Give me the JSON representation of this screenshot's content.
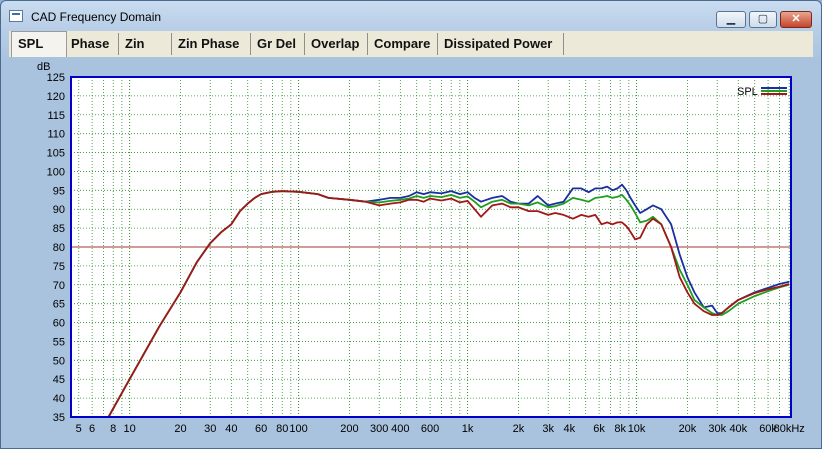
{
  "window": {
    "title": "CAD Frequency Domain",
    "min_label": "▁",
    "max_label": "▢",
    "close_label": "✕"
  },
  "tabs": [
    {
      "label": "SPL",
      "active": true
    },
    {
      "label": "Phase",
      "active": false
    },
    {
      "label": "Zin",
      "active": false
    },
    {
      "label": "Zin Phase",
      "active": false
    },
    {
      "label": "Gr Del",
      "active": false
    },
    {
      "label": "Overlap",
      "active": false
    },
    {
      "label": "Compare",
      "active": false
    },
    {
      "label": "Dissipated Power",
      "active": false
    }
  ],
  "colors": {
    "grid_major": "#2c8a2c",
    "grid_minor": "#2c8a2c",
    "axis": "#0000c8",
    "ref_line": "#a33",
    "blue": "#1a2fa0",
    "green": "#1f9e1f",
    "red": "#a01818"
  },
  "chart_data": {
    "type": "line",
    "title": "",
    "ylabel": "dB",
    "xlabel": "",
    "x_scale": "log",
    "xlim": [
      4.5,
      82000
    ],
    "ylim": [
      35,
      125
    ],
    "grid": true,
    "legend_label": "SPL",
    "legend_position": "top-right",
    "y_ticks": [
      35,
      40,
      45,
      50,
      55,
      60,
      65,
      70,
      75,
      80,
      85,
      90,
      95,
      100,
      105,
      110,
      115,
      120,
      125
    ],
    "x_ticks": [
      {
        "v": 5,
        "label": "5"
      },
      {
        "v": 6,
        "label": "6"
      },
      {
        "v": 8,
        "label": "8"
      },
      {
        "v": 10,
        "label": "10"
      },
      {
        "v": 20,
        "label": "20"
      },
      {
        "v": 30,
        "label": "30"
      },
      {
        "v": 40,
        "label": "40"
      },
      {
        "v": 60,
        "label": "60"
      },
      {
        "v": 80,
        "label": "80"
      },
      {
        "v": 100,
        "label": "100"
      },
      {
        "v": 200,
        "label": "200"
      },
      {
        "v": 300,
        "label": "300"
      },
      {
        "v": 400,
        "label": "400"
      },
      {
        "v": 600,
        "label": "600"
      },
      {
        "v": 1000,
        "label": "1k"
      },
      {
        "v": 2000,
        "label": "2k"
      },
      {
        "v": 3000,
        "label": "3k"
      },
      {
        "v": 4000,
        "label": "4k"
      },
      {
        "v": 6000,
        "label": "6k"
      },
      {
        "v": 8000,
        "label": "8k"
      },
      {
        "v": 10000,
        "label": "10k"
      },
      {
        "v": 20000,
        "label": "20k"
      },
      {
        "v": 30000,
        "label": "30k"
      },
      {
        "v": 40000,
        "label": "40k"
      },
      {
        "v": 60000,
        "label": "60k"
      },
      {
        "v": 80000,
        "label": "80kHz"
      }
    ],
    "reference_line": 80,
    "series": [
      {
        "color": "blue",
        "points": [
          [
            7.5,
            35
          ],
          [
            10,
            45
          ],
          [
            15,
            59
          ],
          [
            20,
            68
          ],
          [
            25,
            76
          ],
          [
            30,
            81
          ],
          [
            35,
            84
          ],
          [
            40,
            86
          ],
          [
            45,
            89.5
          ],
          [
            50,
            91.5
          ],
          [
            55,
            93
          ],
          [
            60,
            94
          ],
          [
            70,
            94.6
          ],
          [
            80,
            94.8
          ],
          [
            100,
            94.6
          ],
          [
            130,
            94
          ],
          [
            150,
            93
          ],
          [
            200,
            92.5
          ],
          [
            250,
            92
          ],
          [
            300,
            92.5
          ],
          [
            350,
            93
          ],
          [
            400,
            93
          ],
          [
            450,
            93.5
          ],
          [
            500,
            94.5
          ],
          [
            550,
            94
          ],
          [
            600,
            94.5
          ],
          [
            700,
            94.2
          ],
          [
            800,
            94.8
          ],
          [
            900,
            94
          ],
          [
            1000,
            94.5
          ],
          [
            1100,
            93
          ],
          [
            1200,
            92
          ],
          [
            1400,
            93
          ],
          [
            1600,
            93.5
          ],
          [
            1800,
            92
          ],
          [
            2000,
            91.5
          ],
          [
            2300,
            91.5
          ],
          [
            2600,
            93.5
          ],
          [
            3000,
            91
          ],
          [
            3300,
            91.5
          ],
          [
            3700,
            92
          ],
          [
            4200,
            95.5
          ],
          [
            4700,
            95.5
          ],
          [
            5200,
            94.5
          ],
          [
            5700,
            95.5
          ],
          [
            6200,
            95.5
          ],
          [
            6700,
            96
          ],
          [
            7200,
            95
          ],
          [
            7700,
            95.5
          ],
          [
            8200,
            96.5
          ],
          [
            8700,
            95
          ],
          [
            9200,
            93
          ],
          [
            9800,
            91
          ],
          [
            10500,
            89
          ],
          [
            11500,
            90
          ],
          [
            12500,
            91
          ],
          [
            14000,
            90
          ],
          [
            16000,
            86
          ],
          [
            18000,
            78
          ],
          [
            20000,
            72
          ],
          [
            22000,
            68
          ],
          [
            25000,
            64
          ],
          [
            28000,
            64.5
          ],
          [
            30000,
            62.5
          ],
          [
            32000,
            62.5
          ],
          [
            35000,
            64
          ],
          [
            40000,
            66
          ],
          [
            50000,
            68
          ],
          [
            60000,
            69.2
          ],
          [
            70000,
            70.2
          ],
          [
            80000,
            70.8
          ]
        ]
      },
      {
        "color": "green",
        "points": [
          [
            7.5,
            35
          ],
          [
            10,
            45
          ],
          [
            15,
            59
          ],
          [
            20,
            68
          ],
          [
            25,
            76
          ],
          [
            30,
            81
          ],
          [
            35,
            84
          ],
          [
            40,
            86
          ],
          [
            45,
            89.5
          ],
          [
            50,
            91.5
          ],
          [
            55,
            93
          ],
          [
            60,
            94
          ],
          [
            70,
            94.6
          ],
          [
            80,
            94.8
          ],
          [
            100,
            94.6
          ],
          [
            130,
            94
          ],
          [
            150,
            93
          ],
          [
            200,
            92.5
          ],
          [
            250,
            92
          ],
          [
            300,
            91.8
          ],
          [
            350,
            92.2
          ],
          [
            400,
            92.5
          ],
          [
            450,
            92.8
          ],
          [
            500,
            93.5
          ],
          [
            550,
            93
          ],
          [
            600,
            93.5
          ],
          [
            700,
            93.2
          ],
          [
            800,
            93.8
          ],
          [
            900,
            93
          ],
          [
            1000,
            93.4
          ],
          [
            1100,
            92
          ],
          [
            1200,
            90.5
          ],
          [
            1400,
            92
          ],
          [
            1600,
            92.5
          ],
          [
            1800,
            91.5
          ],
          [
            2000,
            91.5
          ],
          [
            2300,
            91
          ],
          [
            2600,
            91.8
          ],
          [
            3000,
            90.5
          ],
          [
            3300,
            90.8
          ],
          [
            3700,
            91.5
          ],
          [
            4200,
            93
          ],
          [
            4700,
            92.5
          ],
          [
            5200,
            92
          ],
          [
            5700,
            93
          ],
          [
            6200,
            93.2
          ],
          [
            6700,
            93.5
          ],
          [
            7200,
            93
          ],
          [
            7700,
            93.3
          ],
          [
            8200,
            93.8
          ],
          [
            8700,
            92.5
          ],
          [
            9200,
            91
          ],
          [
            9800,
            89
          ],
          [
            10500,
            86.5
          ],
          [
            11500,
            87
          ],
          [
            12500,
            88
          ],
          [
            14000,
            86
          ],
          [
            16000,
            80
          ],
          [
            18000,
            74
          ],
          [
            20000,
            70
          ],
          [
            22000,
            66
          ],
          [
            25000,
            64
          ],
          [
            28000,
            62.5
          ],
          [
            30000,
            62
          ],
          [
            32000,
            62
          ],
          [
            35000,
            63
          ],
          [
            40000,
            65
          ],
          [
            50000,
            67
          ],
          [
            60000,
            68.3
          ],
          [
            70000,
            69.3
          ],
          [
            80000,
            70
          ]
        ]
      },
      {
        "color": "red",
        "points": [
          [
            7.5,
            35
          ],
          [
            10,
            45
          ],
          [
            15,
            59
          ],
          [
            20,
            68
          ],
          [
            25,
            76
          ],
          [
            30,
            81
          ],
          [
            35,
            84
          ],
          [
            40,
            86
          ],
          [
            45,
            89.5
          ],
          [
            50,
            91.5
          ],
          [
            55,
            93
          ],
          [
            60,
            94
          ],
          [
            70,
            94.6
          ],
          [
            80,
            94.8
          ],
          [
            100,
            94.6
          ],
          [
            130,
            94
          ],
          [
            150,
            93
          ],
          [
            200,
            92.5
          ],
          [
            250,
            92
          ],
          [
            300,
            91
          ],
          [
            350,
            91.5
          ],
          [
            400,
            91.8
          ],
          [
            450,
            92.5
          ],
          [
            500,
            92.5
          ],
          [
            550,
            92
          ],
          [
            600,
            92.8
          ],
          [
            700,
            92.3
          ],
          [
            800,
            92.8
          ],
          [
            900,
            91.8
          ],
          [
            1000,
            92.2
          ],
          [
            1100,
            90
          ],
          [
            1200,
            88
          ],
          [
            1400,
            91
          ],
          [
            1600,
            91.5
          ],
          [
            1800,
            90.5
          ],
          [
            2000,
            90.5
          ],
          [
            2300,
            89.5
          ],
          [
            2600,
            89.5
          ],
          [
            3000,
            88.5
          ],
          [
            3300,
            89
          ],
          [
            3700,
            88.5
          ],
          [
            4200,
            87.5
          ],
          [
            4700,
            88.5
          ],
          [
            5200,
            88
          ],
          [
            5700,
            88.5
          ],
          [
            6200,
            86
          ],
          [
            6700,
            86.5
          ],
          [
            7200,
            86
          ],
          [
            7700,
            86.5
          ],
          [
            8200,
            86.5
          ],
          [
            8700,
            85.5
          ],
          [
            9200,
            84
          ],
          [
            9800,
            82
          ],
          [
            10500,
            82.5
          ],
          [
            11500,
            86
          ],
          [
            12500,
            87.5
          ],
          [
            14000,
            86
          ],
          [
            16000,
            80
          ],
          [
            18000,
            72
          ],
          [
            20000,
            68
          ],
          [
            22000,
            65
          ],
          [
            25000,
            63
          ],
          [
            28000,
            62
          ],
          [
            30000,
            62
          ],
          [
            32000,
            62.5
          ],
          [
            35000,
            64
          ],
          [
            40000,
            66
          ],
          [
            50000,
            67.8
          ],
          [
            60000,
            68.8
          ],
          [
            70000,
            69.5
          ],
          [
            80000,
            70.2
          ]
        ]
      }
    ]
  }
}
